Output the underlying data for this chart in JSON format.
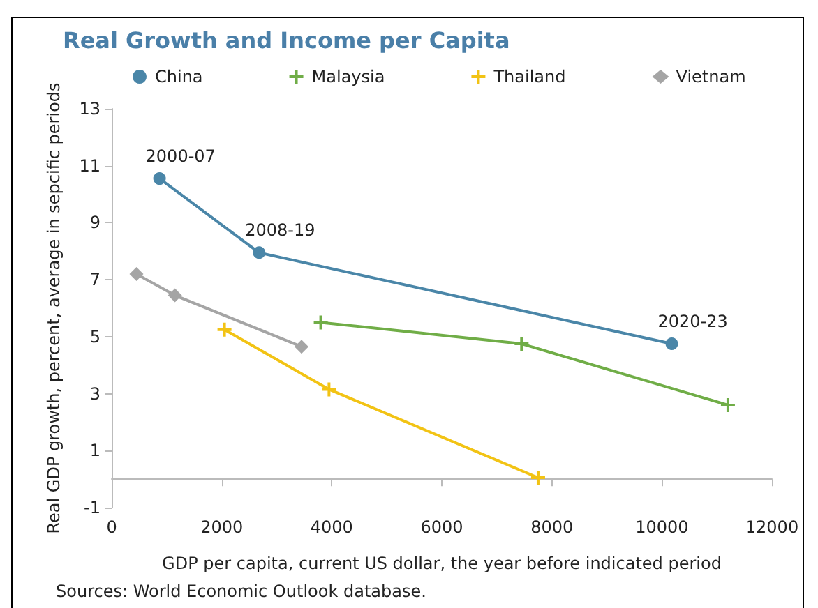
{
  "chart_data": {
    "type": "line",
    "title": "Real Growth and Income per Capita",
    "xlabel": "GDP per capita, current US dollar, the year before indicated period",
    "ylabel": "Real GDP growth, percent, average in sepcific periods",
    "series": [
      {
        "name": "China",
        "color": "#4a86a8",
        "marker": "circle",
        "x": [
          870,
          2680,
          10180
        ],
        "values": [
          10.55,
          7.95,
          4.75
        ]
      },
      {
        "name": "Malaysia",
        "color": "#70ad47",
        "marker": "cross",
        "x": [
          3800,
          7450,
          11200
        ],
        "values": [
          5.5,
          4.75,
          2.6
        ]
      },
      {
        "name": "Thailand",
        "color": "#f2c314",
        "marker": "cross",
        "x": [
          2050,
          3950,
          7750
        ],
        "values": [
          5.25,
          3.15,
          0.05
        ]
      },
      {
        "name": "Vietnam",
        "color": "#a5a5a5",
        "marker": "diamond",
        "x": [
          450,
          1150,
          3450
        ],
        "values": [
          7.2,
          6.45,
          4.65
        ]
      }
    ],
    "annotations": [
      {
        "text": "2000-07",
        "x": 870,
        "y": 10.55
      },
      {
        "text": "2008-19",
        "x": 2680,
        "y": 7.95
      },
      {
        "text": "2020-23",
        "x": 10180,
        "y": 4.75
      },
      "Sources: World Economic Outlook database."
    ],
    "xlim": [
      0,
      12000
    ],
    "xticks": [
      0,
      2000,
      4000,
      6000,
      8000,
      10000,
      12000
    ],
    "ylim": [
      -1,
      13
    ],
    "yticks": [
      -1,
      1,
      3,
      5,
      7,
      9,
      11,
      13
    ],
    "grid": false,
    "legend": "top",
    "line_style": "solid"
  }
}
